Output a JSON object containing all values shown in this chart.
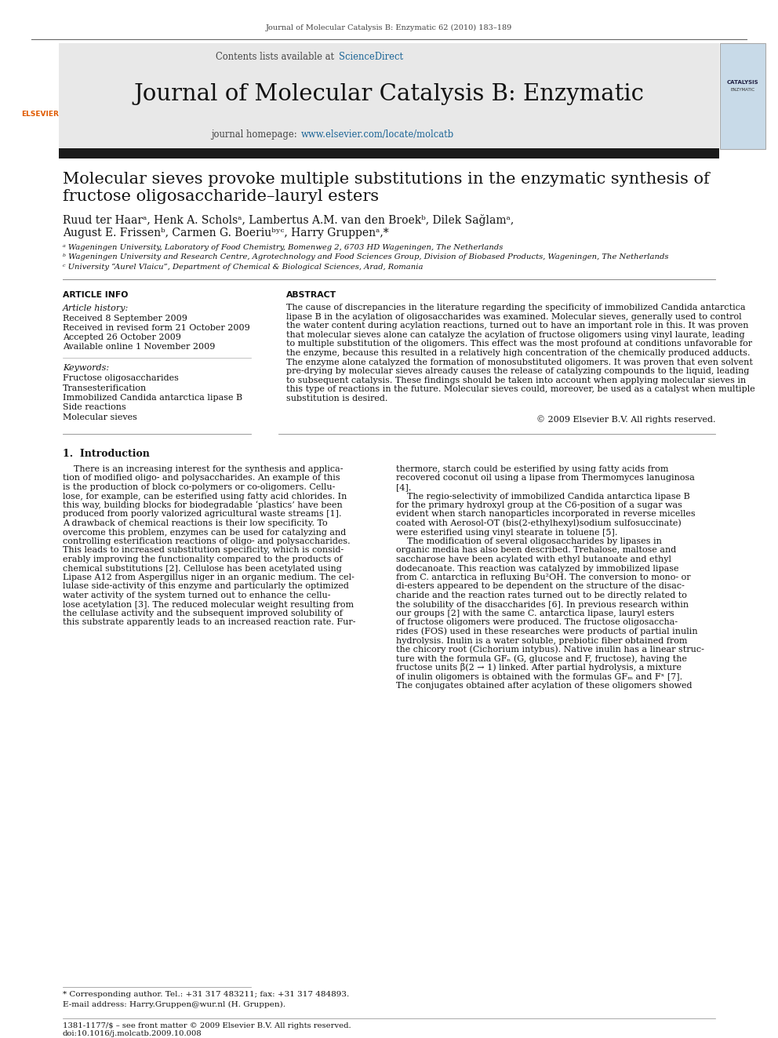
{
  "page_bg": "#ffffff",
  "top_journal_ref": "Journal of Molecular Catalysis B: Enzymatic 62 (2010) 183–189",
  "header_bg": "#e8e8e8",
  "contents_line_prefix": "Contents lists available at ",
  "contents_line_link": "ScienceDirect",
  "sciencedirect_color": "#1a6496",
  "journal_title": "Journal of Molecular Catalysis B: Enzymatic",
  "homepage_prefix": "journal homepage: ",
  "homepage_url": "www.elsevier.com/locate/molcatb",
  "homepage_url_color": "#1a6496",
  "dark_bar_color": "#1a1a1a",
  "paper_title_line1": "Molecular sieves provoke multiple substitutions in the enzymatic synthesis of",
  "paper_title_line2": "fructose oligosaccharide–lauryl esters",
  "authors_line1": "Ruud ter Haarᵃ, Henk A. Scholsᵃ, Lambertus A.M. van den Broekᵇ, Dilek Sağlamᵃ,",
  "authors_line2": "August E. Frissenᵇ, Carmen G. Boeriuᵇʸᶜ, Harry Gruppenᵃ,*",
  "affil_a": "ᵃ Wageningen University, Laboratory of Food Chemistry, Bomenweg 2, 6703 HD Wageningen, The Netherlands",
  "affil_b": "ᵇ Wageningen University and Research Centre, Agrotechnology and Food Sciences Group, Division of Biobased Products, Wageningen, The Netherlands",
  "affil_c": "ᶜ University “Aurel Vlaicu”, Department of Chemical & Biological Sciences, Arad, Romania",
  "article_info_header": "ARTICLE INFO",
  "article_history_label": "Article history:",
  "received": "Received 8 September 2009",
  "received_revised": "Received in revised form 21 October 2009",
  "accepted": "Accepted 26 October 2009",
  "available": "Available online 1 November 2009",
  "keywords_label": "Keywords:",
  "keyword1": "Fructose oligosaccharides",
  "keyword2": "Transesterification",
  "keyword3": "Immobilized Candida antarctica lipase B",
  "keyword4": "Side reactions",
  "keyword5": "Molecular sieves",
  "abstract_header": "ABSTRACT",
  "abstract_lines": [
    "The cause of discrepancies in the literature regarding the specificity of immobilized Candida antarctica",
    "lipase B in the acylation of oligosaccharides was examined. Molecular sieves, generally used to control",
    "the water content during acylation reactions, turned out to have an important role in this. It was proven",
    "that molecular sieves alone can catalyze the acylation of fructose oligomers using vinyl laurate, leading",
    "to multiple substitution of the oligomers. This effect was the most profound at conditions unfavorable for",
    "the enzyme, because this resulted in a relatively high concentration of the chemically produced adducts.",
    "The enzyme alone catalyzed the formation of monosubstituted oligomers. It was proven that even solvent",
    "pre-drying by molecular sieves already causes the release of catalyzing compounds to the liquid, leading",
    "to subsequent catalysis. These findings should be taken into account when applying molecular sieves in",
    "this type of reactions in the future. Molecular sieves could, moreover, be used as a catalyst when multiple",
    "substitution is desired."
  ],
  "copyright": "© 2009 Elsevier B.V. All rights reserved.",
  "intro_header": "1.  Introduction",
  "intro_col1_lines": [
    "    There is an increasing interest for the synthesis and applica-",
    "tion of modified oligo- and polysaccharides. An example of this",
    "is the production of block co-polymers or co-oligomers. Cellu-",
    "lose, for example, can be esterified using fatty acid chlorides. In",
    "this way, building blocks for biodegradable ‘plastics’ have been",
    "produced from poorly valorized agricultural waste streams [1].",
    "A drawback of chemical reactions is their low specificity. To",
    "overcome this problem, enzymes can be used for catalyzing and",
    "controlling esterification reactions of oligo- and polysaccharides.",
    "This leads to increased substitution specificity, which is consid-",
    "erably improving the functionality compared to the products of",
    "chemical substitutions [2]. Cellulose has been acetylated using",
    "Lipase A12 from Aspergillus niger in an organic medium. The cel-",
    "lulase side-activity of this enzyme and particularly the optimized",
    "water activity of the system turned out to enhance the cellu-",
    "lose acetylation [3]. The reduced molecular weight resulting from",
    "the cellulase activity and the subsequent improved solubility of",
    "this substrate apparently leads to an increased reaction rate. Fur-"
  ],
  "intro_col2_lines": [
    "thermore, starch could be esterified by using fatty acids from",
    "recovered coconut oil using a lipase from Thermomyces lanuginosa",
    "[4].",
    "    The regio-selectivity of immobilized Candida antarctica lipase B",
    "for the primary hydroxyl group at the C6-position of a sugar was",
    "evident when starch nanoparticles incorporated in reverse micelles",
    "coated with Aerosol-OT (bis(2-ethylhexyl)sodium sulfosuccinate)",
    "were esterified using vinyl stearate in toluene [5].",
    "    The modification of several oligosaccharides by lipases in",
    "organic media has also been described. Trehalose, maltose and",
    "saccharose have been acylated with ethyl butanoate and ethyl",
    "dodecanoate. This reaction was catalyzed by immobilized lipase",
    "from C. antarctica in refluxing Bu²OH. The conversion to mono- or",
    "di-esters appeared to be dependent on the structure of the disac-",
    "charide and the reaction rates turned out to be directly related to",
    "the solubility of the disaccharides [6]. In previous research within",
    "our groups [2] with the same C. antarctica lipase, lauryl esters",
    "of fructose oligomers were produced. The fructose oligosaccha-",
    "rides (FOS) used in these researches were products of partial inulin",
    "hydrolysis. Inulin is a water soluble, prebiotic fiber obtained from",
    "the chicory root (Cichorium intybus). Native inulin has a linear struc-",
    "ture with the formula GFₙ (G, glucose and F, fructose), having the",
    "fructose units β(2 → 1) linked. After partial hydrolysis, a mixture",
    "of inulin oligomers is obtained with the formulas GFₘ and Fˣ [7].",
    "The conjugates obtained after acylation of these oligomers showed"
  ],
  "footnote_line1": "* Corresponding author. Tel.: +31 317 483211; fax: +31 317 484893.",
  "footnote_line2": "E-mail address: Harry.Gruppen@wur.nl (H. Gruppen).",
  "footer_issn": "1381-1177/$ – see front matter © 2009 Elsevier B.V. All rights reserved.",
  "footer_doi": "doi:10.1016/j.molcatb.2009.10.008"
}
